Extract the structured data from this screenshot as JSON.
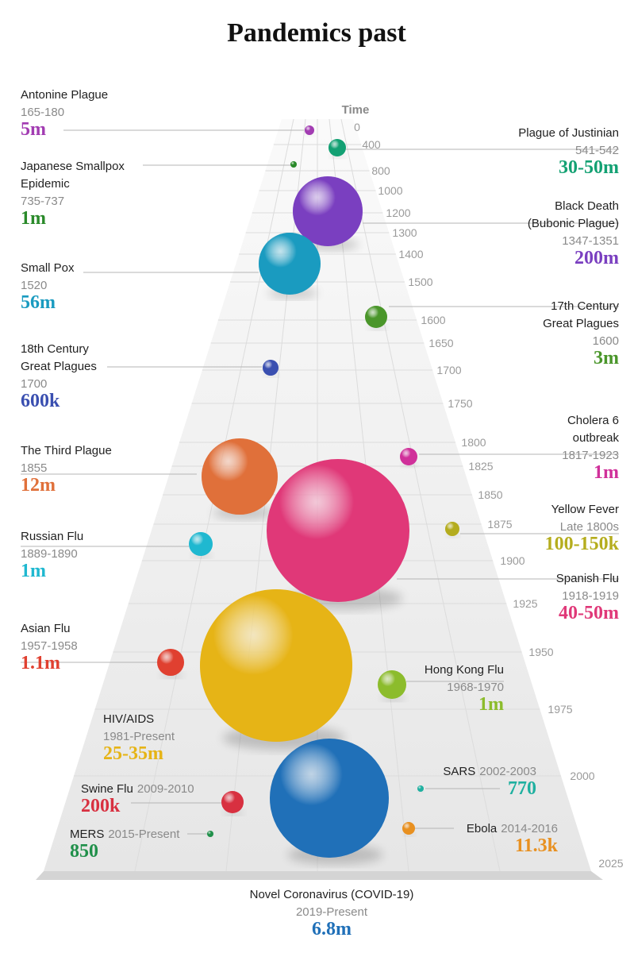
{
  "title": "Pandemics past",
  "axis": {
    "label": "Time",
    "ticks": [
      "0",
      "400",
      "800",
      "1000",
      "1200",
      "1300",
      "1400",
      "1500",
      "1600",
      "1650",
      "1700",
      "1750",
      "1800",
      "1825",
      "1850",
      "1875",
      "1900",
      "1925",
      "1950",
      "1975",
      "2000",
      "2025"
    ]
  },
  "pandemics": [
    {
      "name": [
        "Antonine Plague"
      ],
      "dates": "165-180",
      "deaths": "5m",
      "color": "#a23cb2"
    },
    {
      "name": [
        "Plague of Justinian"
      ],
      "dates": "541-542",
      "deaths": "30-50m",
      "color": "#13a173"
    },
    {
      "name": [
        "Japanese Smallpox",
        "Epidemic"
      ],
      "dates": "735-737",
      "deaths": "1m",
      "color": "#2a8a2a"
    },
    {
      "name": [
        "Black Death",
        "(Bubonic Plague)"
      ],
      "dates": "1347-1351",
      "deaths": "200m",
      "color": "#7a3fc0"
    },
    {
      "name": [
        "Small Pox"
      ],
      "dates": "1520",
      "deaths": "56m",
      "color": "#1a9bc0"
    },
    {
      "name": [
        "17th Century",
        "Great Plagues"
      ],
      "dates": "1600",
      "deaths": "3m",
      "color": "#4a962a"
    },
    {
      "name": [
        "18th Century",
        "Great Plagues"
      ],
      "dates": "1700",
      "deaths": "600k",
      "color": "#3a4fb0"
    },
    {
      "name": [
        "The Third Plague"
      ],
      "dates": "1855",
      "deaths": "12m",
      "color": "#e0703a"
    },
    {
      "name": [
        "Cholera 6",
        "outbreak"
      ],
      "dates": "1817-1923",
      "deaths": "1m",
      "color": "#d0309a"
    },
    {
      "name": [
        "Yellow Fever"
      ],
      "dates": "Late 1800s",
      "deaths": "100-150k",
      "color": "#b5ad1e"
    },
    {
      "name": [
        "Spanish Flu"
      ],
      "dates": "1918-1919",
      "deaths": "40-50m",
      "color": "#e03878"
    },
    {
      "name": [
        "Russian Flu"
      ],
      "dates": "1889-1890",
      "deaths": "1m",
      "color": "#1fb8d0"
    },
    {
      "name": [
        "Asian Flu"
      ],
      "dates": "1957-1958",
      "deaths": "1.1m",
      "color": "#e04030"
    },
    {
      "name": [
        "Hong Kong Flu"
      ],
      "dates": "1968-1970",
      "deaths": "1m",
      "color": "#8cbc2c"
    },
    {
      "name": [
        "HIV/AIDS"
      ],
      "dates": "1981-Present",
      "deaths": "25-35m",
      "color": "#e6b416"
    },
    {
      "name": [
        "SARS"
      ],
      "dates": "2002-2003",
      "deaths": "770",
      "color": "#1fb0a0"
    },
    {
      "name": [
        "Swine Flu"
      ],
      "dates": "2009-2010",
      "deaths": "200k",
      "color": "#d83040"
    },
    {
      "name": [
        "Ebola"
      ],
      "dates": "2014-2016",
      "deaths": "11.3k",
      "color": "#e89020"
    },
    {
      "name": [
        "MERS"
      ],
      "dates": "2015-Present",
      "deaths": "850",
      "color": "#20904a"
    },
    {
      "name": [
        "Novel Coronavirus (COVID-19)"
      ],
      "dates": "2019-Present",
      "deaths": "6.8m",
      "color": "#2070b8"
    }
  ]
}
